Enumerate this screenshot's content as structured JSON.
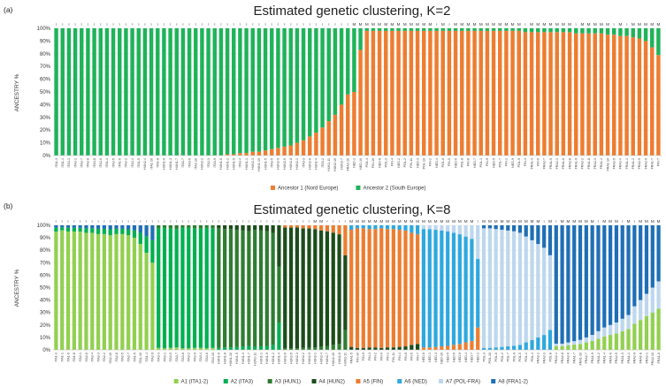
{
  "chart_data": [
    {
      "type": "bar",
      "stacked": true,
      "panel_label": "(a)",
      "title": "Estimated genetic clustering, K=2",
      "ylabel": "ANCESTRY %",
      "ylim": [
        0,
        100
      ],
      "yticks": [
        "0%",
        "10%",
        "20%",
        "30%",
        "40%",
        "50%",
        "60%",
        "70%",
        "80%",
        "90%",
        "100%"
      ],
      "categories": [
        "ITA1-3",
        "ITA1-4",
        "ITA3-1",
        "ITA2-1",
        "ITA2-7",
        "ITA2-8",
        "ITA3-8",
        "ITA2-6",
        "ITA1-1",
        "ITA2-5",
        "ITA1-6",
        "ITA2-2",
        "ITA2-4",
        "ITA1-5",
        "HUN2-4",
        "ITA1-10",
        "ITA1-8",
        "HUN1-9",
        "HUN1-3",
        "HUN1-7",
        "ITA3-7",
        "ITA3-6",
        "ITA2-10",
        "HUN2-2",
        "ITA2-3",
        "ITA3-9",
        "HUN1-8",
        "HUN1-2",
        "HUN1-6",
        "ITA3-4",
        "HUN1-1",
        "HUN2-3",
        "HUN1-10",
        "HUN1-5",
        "ITA3-5",
        "HUN2-9",
        "HUN2-5",
        "HUN2-8",
        "HUN2-1",
        "ITA3-3",
        "HUN2-6",
        "HUN1-4",
        "ITA3-2",
        "HUN1-11",
        "HUN2-10",
        "HUN2-7",
        "FRA2-10",
        "NED-1",
        "NED-10",
        "POL-4",
        "FIN-10",
        "NED-8",
        "POL-3",
        "FIN-4",
        "NED-2",
        "POL-2",
        "FIN-11",
        "NED-3",
        "POL-10",
        "FIN-2",
        "NED-4",
        "POL-6",
        "FIN-5",
        "NED-6",
        "POL-8",
        "FIN-8",
        "NED-7",
        "POL-1",
        "FIN-9",
        "NED-5",
        "POL-7",
        "FIN-1",
        "NED-9",
        "POL-9",
        "FIN-3",
        "FRA1-3",
        "FIN-6",
        "FRA2-7",
        "FRA1-5",
        "FRA2-1",
        "FRA1-6",
        "FRA2-8",
        "FRA1-9",
        "FRA2-2",
        "FRA1-8",
        "FRA2-3",
        "FRA1-4",
        "FRA1-10",
        "FRA2-5",
        "FRA2-4",
        "FRA1-1",
        "FRA1-2",
        "FRA2-9",
        "FRA2-6",
        "FRA1-7",
        "FIN-7"
      ],
      "sex": [
        "F",
        "F",
        "F",
        "F",
        "F",
        "F",
        "F",
        "F",
        "F",
        "F",
        "F",
        "F",
        "F",
        "F",
        "F",
        "F",
        "F",
        "F",
        "F",
        "F",
        "F",
        "F",
        "F",
        "F",
        "F",
        "F",
        "F",
        "F",
        "F",
        "F",
        "F",
        "F",
        "F",
        "F",
        "F",
        "F",
        "F",
        "F",
        "F",
        "F",
        "F",
        "F",
        "F",
        "F",
        "F",
        "F",
        "F",
        "M",
        "M",
        "M",
        "M",
        "M",
        "M",
        "M",
        "M",
        "M",
        "M",
        "M",
        "M",
        "M",
        "F",
        "M",
        "F",
        "M",
        "M",
        "M",
        "M",
        "M",
        "M",
        "M",
        "M",
        "M",
        "M",
        "M",
        "F",
        "M",
        "M",
        "M",
        "M",
        "M",
        "M",
        "M",
        "F",
        "M",
        "M",
        "M",
        "M",
        "M",
        "F",
        "M",
        "F",
        "M",
        "M",
        "M",
        "M",
        "M"
      ],
      "series": [
        {
          "name": "Ancestor 1 (Nord Europe)",
          "color": "#ed7d31",
          "values": [
            0,
            0,
            0,
            0,
            0,
            0,
            0,
            0,
            0,
            0,
            0,
            0,
            0,
            0,
            0,
            0,
            0,
            0,
            0,
            0,
            0,
            0,
            0,
            0,
            0,
            0,
            0,
            1,
            1,
            2,
            2,
            3,
            3,
            4,
            5,
            6,
            7,
            8,
            10,
            12,
            15,
            18,
            22,
            27,
            32,
            40,
            48,
            50,
            83,
            98,
            98,
            98,
            98,
            98,
            98,
            98,
            98,
            98,
            98,
            98,
            98,
            98,
            98,
            98,
            98,
            98,
            98,
            98,
            98,
            98,
            98,
            98,
            98,
            98,
            97,
            97,
            97,
            97,
            97,
            97,
            97,
            97,
            96,
            96,
            96,
            96,
            96,
            95,
            95,
            94,
            94,
            93,
            92,
            90,
            85,
            79
          ]
        },
        {
          "name": "Ancestor 2 (South Europe)",
          "color": "#1fb35a",
          "values": [
            100,
            100,
            100,
            100,
            100,
            100,
            100,
            100,
            100,
            100,
            100,
            100,
            100,
            100,
            100,
            100,
            100,
            100,
            100,
            100,
            100,
            100,
            100,
            100,
            100,
            100,
            100,
            99,
            99,
            98,
            98,
            97,
            97,
            96,
            95,
            94,
            93,
            92,
            90,
            88,
            85,
            82,
            78,
            73,
            68,
            60,
            52,
            50,
            17,
            2,
            2,
            2,
            2,
            2,
            2,
            2,
            2,
            2,
            2,
            2,
            2,
            2,
            2,
            2,
            2,
            2,
            2,
            2,
            2,
            2,
            2,
            2,
            2,
            2,
            3,
            3,
            3,
            3,
            3,
            3,
            3,
            3,
            4,
            4,
            4,
            4,
            4,
            5,
            5,
            6,
            6,
            7,
            8,
            10,
            15,
            21
          ]
        }
      ],
      "legend": "bottom"
    },
    {
      "type": "bar",
      "stacked": true,
      "panel_label": "(b)",
      "title": "Estimated genetic clustering, K=8",
      "ylabel": "ANCESTRY %",
      "ylim": [
        0,
        100
      ],
      "yticks": [
        "0%",
        "10%",
        "20%",
        "30%",
        "40%",
        "50%",
        "60%",
        "70%",
        "80%",
        "90%",
        "100%"
      ],
      "categories": [
        "ITA1-3",
        "ITA1-1",
        "ITA1-6",
        "ITA1-8",
        "ITA2-1",
        "ITA2-6",
        "ITA2-4",
        "ITA2-3",
        "ITA2-2",
        "ITA2-10",
        "ITA2-8",
        "ITA2-5",
        "ITA2-7",
        "ITA1-5",
        "ITA1-10",
        "ITA1-4",
        "ITA2-9",
        "ITA3-3",
        "ITA3-1",
        "ITA3-5",
        "ITA3-7",
        "ITA3-8",
        "ITA3-2",
        "ITA3-9",
        "ITA3-4",
        "ITA3-6",
        "ITA3-10",
        "HUN1-6",
        "HUN1-8",
        "HUN1-10",
        "HUN1-5",
        "HUN1-3",
        "HUN1-7",
        "HUN1-11",
        "HUN1-1",
        "HUN1-9",
        "HUN1-2",
        "HUN1-4",
        "HUN2-6",
        "HUN2-5",
        "HUN2-3",
        "HUN2-2",
        "HUN2-9",
        "HUN2-1",
        "HUN2-4",
        "HUN2-7",
        "HUN2-10",
        "HUN2-8",
        "HUN2-11",
        "FRA1-5",
        "FIN-10",
        "FIN-9",
        "FIN-3",
        "FIN-2",
        "FIN-6",
        "FIN-1",
        "FIN-11",
        "FIN-4",
        "FIN-8",
        "FIN-5",
        "FIN-7",
        "NED-8",
        "NED-1",
        "NED-3",
        "NED-10",
        "NED-5",
        "NED-6",
        "NED-9",
        "NED-4",
        "NED-7",
        "NED-2",
        "POL-3",
        "POL-10",
        "POL-6",
        "POL-2",
        "POL-7",
        "POL-9",
        "POL-5",
        "POL-1",
        "POL-4",
        "FRA2-2",
        "FRA2-3",
        "POL-8",
        "FRA2-4",
        "FRA2-8",
        "FRA2-6",
        "FRA1-7",
        "FRA1-10",
        "FRA2-7",
        "FRA1-9",
        "FRA1-2",
        "FRA1-4",
        "FRA1-6",
        "FRA2-5",
        "FRA1-3",
        "FRA1-1",
        "FRA2-9",
        "FRA1-8",
        "FRA2-1",
        "FRA2-10",
        "FRA1-6"
      ],
      "sex": [
        "F",
        "F",
        "F",
        "F",
        "F",
        "F",
        "F",
        "F",
        "F",
        "F",
        "F",
        "F",
        "F",
        "F",
        "F",
        "F",
        "F",
        "F",
        "F",
        "F",
        "F",
        "F",
        "F",
        "F",
        "F",
        "F",
        "F",
        "F",
        "F",
        "F",
        "F",
        "F",
        "F",
        "F",
        "F",
        "F",
        "F",
        "F",
        "F",
        "F",
        "F",
        "F",
        "F",
        "M",
        "M",
        "F",
        "F",
        "F",
        "F",
        "M",
        "M",
        "M",
        "M",
        "M",
        "M",
        "M",
        "M",
        "M",
        "M",
        "M",
        "M",
        "M",
        "M",
        "M",
        "M",
        "M",
        "M",
        "M",
        "M",
        "M",
        "F",
        "M",
        "M",
        "M",
        "M",
        "M",
        "M",
        "M",
        "M",
        "M",
        "M",
        "F",
        "M",
        "F",
        "M",
        "M",
        "M",
        "M",
        "M",
        "M",
        "F",
        "M",
        "M",
        "M",
        "F",
        "M",
        "F",
        "M",
        "M",
        "M",
        "M"
      ],
      "series": [
        {
          "name": "A1 (ITA1-2)",
          "color": "#92d050"
        },
        {
          "name": "A2 (ITA3)",
          "color": "#00b050"
        },
        {
          "name": "A3 (HUN1)",
          "color": "#2e7d32"
        },
        {
          "name": "A4 (HUN2)",
          "color": "#1b4d1b"
        },
        {
          "name": "A5 (FIN)",
          "color": "#ed7d31"
        },
        {
          "name": "A6 (NED)",
          "color": "#2ea8df"
        },
        {
          "name": "A7 (POL-FRA)",
          "color": "#bdd7ee"
        },
        {
          "name": "A8 (FRA1-2)",
          "color": "#1f6fb5"
        }
      ],
      "dominant": [
        0,
        0,
        0,
        0,
        0,
        0,
        0,
        0,
        0,
        0,
        0,
        0,
        0,
        0,
        0,
        0,
        0,
        1,
        1,
        1,
        1,
        1,
        1,
        1,
        1,
        1,
        1,
        2,
        2,
        2,
        2,
        2,
        2,
        2,
        2,
        2,
        2,
        2,
        3,
        3,
        3,
        3,
        3,
        3,
        3,
        3,
        3,
        3,
        3,
        4,
        4,
        4,
        4,
        4,
        4,
        4,
        4,
        4,
        4,
        4,
        4,
        5,
        5,
        5,
        5,
        5,
        5,
        5,
        5,
        5,
        5,
        6,
        6,
        6,
        6,
        6,
        6,
        6,
        6,
        6,
        6,
        6,
        6,
        7,
        7,
        7,
        7,
        7,
        7,
        7,
        7,
        7,
        7,
        7,
        7,
        7,
        7,
        7,
        7,
        7,
        7
      ],
      "dominant_pct": [
        95,
        96,
        95,
        95,
        95,
        94,
        94,
        93,
        93,
        92,
        93,
        93,
        92,
        90,
        85,
        78,
        70,
        96,
        97,
        96,
        95,
        97,
        97,
        96,
        96,
        97,
        96,
        96,
        95,
        95,
        94,
        93,
        92,
        94,
        93,
        92,
        90,
        45,
        97,
        97,
        97,
        96,
        96,
        95,
        93,
        92,
        90,
        88,
        60,
        94,
        96,
        96,
        95,
        95,
        96,
        95,
        95,
        94,
        93,
        90,
        88,
        95,
        95,
        94,
        93,
        92,
        90,
        88,
        85,
        82,
        55,
        96,
        96,
        95,
        94,
        93,
        92,
        90,
        85,
        80,
        75,
        70,
        60,
        95,
        95,
        94,
        93,
        92,
        90,
        88,
        85,
        82,
        80,
        78,
        75,
        72,
        65,
        60,
        55,
        50,
        45
      ],
      "legend": "bottom"
    }
  ]
}
